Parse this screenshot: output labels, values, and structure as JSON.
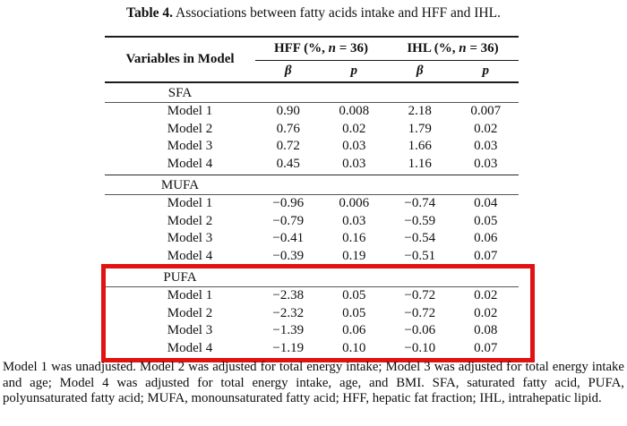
{
  "title": {
    "label": "Table 4.",
    "text": " Associations between fatty acids intake and HFF and IHL."
  },
  "table": {
    "col1_header": "Variables in Model",
    "groups": [
      {
        "pre": "HFF (%, ",
        "italic": "n",
        "post": " = 36)"
      },
      {
        "pre": "IHL (%, ",
        "italic": "n",
        "post": " = 36)"
      }
    ],
    "subheaders": [
      "β",
      "p",
      "β",
      "p"
    ],
    "sections": [
      {
        "label": "SFA",
        "highlighted": false,
        "rows": [
          {
            "label": "Model 1",
            "values": [
              "0.90",
              "0.008",
              "2.18",
              "0.007"
            ]
          },
          {
            "label": "Model 2",
            "values": [
              "0.76",
              "0.02",
              "1.79",
              "0.02"
            ]
          },
          {
            "label": "Model 3",
            "values": [
              "0.72",
              "0.03",
              "1.66",
              "0.03"
            ]
          },
          {
            "label": "Model 4",
            "values": [
              "0.45",
              "0.03",
              "1.16",
              "0.03"
            ]
          }
        ]
      },
      {
        "label": "MUFA",
        "highlighted": false,
        "rows": [
          {
            "label": "Model 1",
            "values": [
              "−0.96",
              "0.006",
              "−0.74",
              "0.04"
            ]
          },
          {
            "label": "Model 2",
            "values": [
              "−0.79",
              "0.03",
              "−0.59",
              "0.05"
            ]
          },
          {
            "label": "Model 3",
            "values": [
              "−0.41",
              "0.16",
              "−0.54",
              "0.06"
            ]
          },
          {
            "label": "Model 4",
            "values": [
              "−0.39",
              "0.19",
              "−0.51",
              "0.07"
            ]
          }
        ]
      },
      {
        "label": "PUFA",
        "highlighted": true,
        "rows": [
          {
            "label": "Model 1",
            "values": [
              "−2.38",
              "0.05",
              "−0.72",
              "0.02"
            ]
          },
          {
            "label": "Model 2",
            "values": [
              "−2.32",
              "0.05",
              "−0.72",
              "0.02"
            ]
          },
          {
            "label": "Model 3",
            "values": [
              "−1.39",
              "0.06",
              "−0.06",
              "0.08"
            ]
          },
          {
            "label": "Model 4",
            "values": [
              "−1.19",
              "0.10",
              "−0.10",
              "0.07"
            ]
          }
        ]
      }
    ]
  },
  "footnote": "Model 1 was unadjusted. Model 2 was adjusted for total energy intake; Model 3 was adjusted for total energy intake and age; Model 4 was adjusted for total energy intake, age, and BMI. SFA, saturated fatty acid, PUFA, polyunsaturated fatty acid; MUFA, monounsaturated fatty acid; HFF, hepatic fat fraction; IHL, intrahepatic lipid.",
  "colors": {
    "highlight_box": "#e11212",
    "rule": "#1b1b1b",
    "text": "#111111"
  }
}
